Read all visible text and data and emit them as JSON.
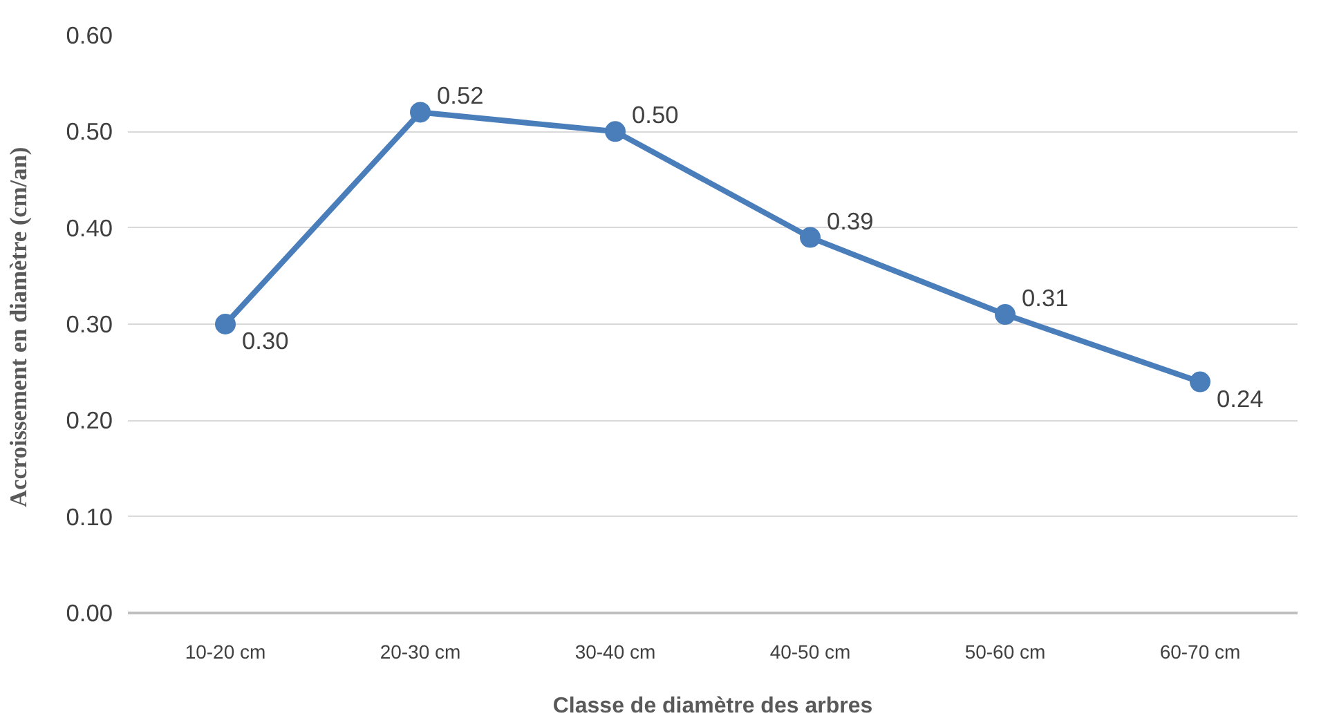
{
  "chart_data": {
    "type": "line",
    "xlabel": "Classe de diamètre des arbres",
    "ylabel": "Accroissement  en diamètre (cm/an)",
    "categories": [
      "10-20 cm",
      "20-30 cm",
      "30-40 cm",
      "40-50 cm",
      "50-60 cm",
      "60-70 cm"
    ],
    "series": [
      {
        "color": "#4a7ebb",
        "values": [
          0.3,
          0.52,
          0.5,
          0.39,
          0.31,
          0.24
        ],
        "value_labels": [
          "0.30",
          "0.52",
          "0.50",
          "0.39",
          "0.31",
          "0.24"
        ]
      }
    ],
    "ylim": [
      0,
      0.6
    ],
    "yticks": [
      {
        "value": 0,
        "label": "0.00"
      },
      {
        "value": 0.1,
        "label": "0.10"
      },
      {
        "value": 0.2,
        "label": "0.20"
      },
      {
        "value": 0.3,
        "label": "0.30"
      },
      {
        "value": 0.4,
        "label": "0.40"
      },
      {
        "value": 0.5,
        "label": "0.50"
      },
      {
        "value": 0.6,
        "label": "0.60"
      }
    ],
    "grid": "y",
    "marker": "circle",
    "line_style": "solid"
  }
}
